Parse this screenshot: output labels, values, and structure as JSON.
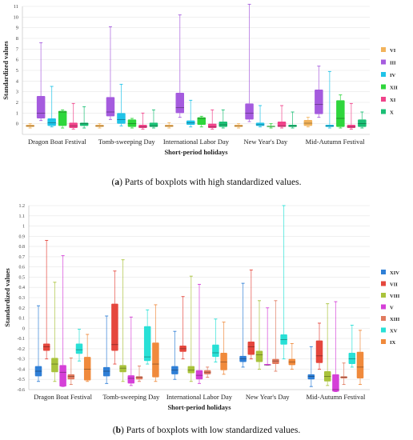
{
  "chart_data": [
    {
      "type": "boxplot",
      "panel_letter": "a",
      "caption": "Parts of boxplots with high standardized values.",
      "xlabel": "Short-period holidays",
      "ylabel": "Standardized values",
      "ylim": [
        -1,
        11
      ],
      "yticks": [
        0,
        1,
        2,
        3,
        4,
        5,
        6,
        7,
        8,
        9,
        10,
        11
      ],
      "grid": "horizontal",
      "legend_position": "right",
      "categories": [
        "Dragon Boat Festival",
        "Tomb-sweeping Day",
        "International Labor Day",
        "New Year's Day",
        "Mid-Autumn Festival"
      ],
      "series": [
        {
          "name": "VI",
          "color": "#F2B35B",
          "boxes": [
            {
              "min": -0.4,
              "q1": -0.3,
              "median": -0.2,
              "q3": -0.1,
              "max": 0.0
            },
            {
              "min": -0.4,
              "q1": -0.3,
              "median": -0.2,
              "q3": -0.1,
              "max": 0.0
            },
            {
              "min": -0.4,
              "q1": -0.3,
              "median": -0.2,
              "q3": -0.1,
              "max": 0.1
            },
            {
              "min": -0.4,
              "q1": -0.3,
              "median": -0.2,
              "q3": -0.1,
              "max": 0.0
            },
            {
              "min": -0.3,
              "q1": -0.2,
              "median": 0.05,
              "q3": 0.35,
              "max": 0.6
            }
          ]
        },
        {
          "name": "III",
          "color": "#A55BDE",
          "boxes": [
            {
              "min": 0.3,
              "q1": 0.5,
              "median": 1.0,
              "q3": 2.6,
              "max": 7.6
            },
            {
              "min": 0.4,
              "q1": 0.7,
              "median": 1.1,
              "q3": 2.5,
              "max": 9.1
            },
            {
              "min": 0.6,
              "q1": 1.0,
              "median": 1.5,
              "q3": 2.9,
              "max": 10.2
            },
            {
              "min": 0.2,
              "q1": 0.4,
              "median": 1.0,
              "q3": 1.9,
              "max": 11.2
            },
            {
              "min": 0.6,
              "q1": 0.9,
              "median": 1.8,
              "q3": 3.2,
              "max": 5.4
            }
          ]
        },
        {
          "name": "IV",
          "color": "#1FC3E8",
          "boxes": [
            {
              "min": -0.3,
              "q1": -0.2,
              "median": 0.1,
              "q3": 0.5,
              "max": 3.5
            },
            {
              "min": -0.2,
              "q1": 0.0,
              "median": 0.4,
              "q3": 1.0,
              "max": 3.7
            },
            {
              "min": -0.3,
              "q1": -0.1,
              "median": 0.1,
              "q3": 0.3,
              "max": 2.2
            },
            {
              "min": -0.3,
              "q1": -0.2,
              "median": -0.1,
              "q3": 0.1,
              "max": 1.7
            },
            {
              "min": -0.4,
              "q1": -0.3,
              "median": -0.2,
              "q3": -0.1,
              "max": 4.9
            }
          ]
        },
        {
          "name": "XII",
          "color": "#2FD63C",
          "boxes": [
            {
              "min": -0.4,
              "q1": -0.2,
              "median": 1.1,
              "q3": 1.2,
              "max": 1.3
            },
            {
              "min": -0.4,
              "q1": -0.3,
              "median": 0.0,
              "q3": 0.4,
              "max": 0.5
            },
            {
              "min": -0.3,
              "q1": -0.1,
              "median": 0.5,
              "q3": 0.6,
              "max": 0.7
            },
            {
              "min": -0.4,
              "q1": -0.3,
              "median": -0.25,
              "q3": -0.2,
              "max": 0.0
            },
            {
              "min": -0.4,
              "q1": -0.3,
              "median": 0.5,
              "q3": 2.2,
              "max": 2.7
            }
          ]
        },
        {
          "name": "XI",
          "color": "#F0438A",
          "boxes": [
            {
              "min": -0.5,
              "q1": -0.4,
              "median": -0.2,
              "q3": 0.1,
              "max": 1.9
            },
            {
              "min": -0.5,
              "q1": -0.4,
              "median": -0.3,
              "q3": -0.1,
              "max": 1.0
            },
            {
              "min": -0.5,
              "q1": -0.4,
              "median": -0.3,
              "q3": 0.0,
              "max": 1.3
            },
            {
              "min": -0.4,
              "q1": -0.3,
              "median": -0.2,
              "q3": 0.2,
              "max": 1.7
            },
            {
              "min": -0.5,
              "q1": -0.4,
              "median": -0.3,
              "q3": -0.1,
              "max": 1.9
            }
          ]
        },
        {
          "name": "X",
          "color": "#1BBF75",
          "boxes": [
            {
              "min": -0.4,
              "q1": -0.2,
              "median": 0.0,
              "q3": 0.1,
              "max": 1.6
            },
            {
              "min": -0.4,
              "q1": -0.3,
              "median": -0.2,
              "q3": 0.1,
              "max": 1.3
            },
            {
              "min": -0.4,
              "q1": -0.3,
              "median": -0.1,
              "q3": 0.2,
              "max": 1.3
            },
            {
              "min": -0.4,
              "q1": -0.3,
              "median": -0.2,
              "q3": -0.1,
              "max": 1.1
            },
            {
              "min": -0.4,
              "q1": -0.3,
              "median": 0.0,
              "q3": 0.4,
              "max": 1.1
            }
          ]
        }
      ]
    },
    {
      "type": "boxplot",
      "panel_letter": "b",
      "caption": "Parts of boxplots with low standardized values.",
      "xlabel": "Short-period holidays",
      "ylabel": "Standardized values",
      "ylim": [
        -0.6,
        1.2
      ],
      "yticks": [
        -0.6,
        -0.5,
        -0.4,
        -0.3,
        -0.2,
        -0.1,
        0,
        0.1,
        0.2,
        0.3,
        0.4,
        0.5,
        0.6,
        0.7,
        0.8,
        0.9,
        1.0,
        1.1,
        1.2
      ],
      "yticklabels": [
        "-0.6",
        "-0.5",
        "-0.4",
        "-0.3",
        "-0.2",
        "-0.1",
        "0",
        "0.1",
        "0.2",
        "0.3",
        "0.4",
        "0.5",
        "0.6",
        "0.7",
        "0.8",
        "0.9",
        "1",
        "1.1",
        "1.2"
      ],
      "grid": "horizontal",
      "legend_position": "right",
      "categories": [
        "Dragon Boat Festival",
        "Tomb-sweeping Day",
        "International Labor Day",
        "New Year's Day",
        "Mid-Autumn Festival"
      ],
      "series": [
        {
          "name": "XIV",
          "color": "#2F7FD6",
          "boxes": [
            {
              "min": -0.52,
              "q1": -0.47,
              "median": -0.42,
              "q3": -0.37,
              "max": 0.22
            },
            {
              "min": -0.54,
              "q1": -0.47,
              "median": -0.42,
              "q3": -0.38,
              "max": 0.12
            },
            {
              "min": -0.5,
              "q1": -0.45,
              "median": -0.41,
              "q3": -0.37,
              "max": -0.03
            },
            {
              "min": -0.38,
              "q1": -0.33,
              "median": -0.3,
              "q3": -0.27,
              "max": 0.44
            },
            {
              "min": -0.57,
              "q1": -0.5,
              "median": -0.47,
              "q3": -0.45,
              "max": -0.18
            }
          ]
        },
        {
          "name": "VII",
          "color": "#E5473D",
          "boxes": [
            {
              "min": -0.3,
              "q1": -0.22,
              "median": -0.18,
              "q3": -0.15,
              "max": 0.86
            },
            {
              "min": -0.35,
              "q1": -0.22,
              "median": -0.16,
              "q3": 0.24,
              "max": 0.56
            },
            {
              "min": -0.3,
              "q1": -0.23,
              "median": -0.2,
              "q3": -0.17,
              "max": 0.31
            },
            {
              "min": -0.3,
              "q1": -0.26,
              "median": -0.18,
              "q3": -0.13,
              "max": 0.57
            },
            {
              "min": -0.4,
              "q1": -0.34,
              "median": -0.27,
              "q3": -0.12,
              "max": 0.05
            }
          ]
        },
        {
          "name": "VIII",
          "color": "#A9C33B",
          "boxes": [
            {
              "min": -0.52,
              "q1": -0.43,
              "median": -0.35,
              "q3": -0.29,
              "max": 0.45
            },
            {
              "min": -0.52,
              "q1": -0.43,
              "median": -0.39,
              "q3": -0.36,
              "max": 0.67
            },
            {
              "min": -0.52,
              "q1": -0.44,
              "median": -0.41,
              "q3": -0.37,
              "max": 0.51
            },
            {
              "min": -0.4,
              "q1": -0.33,
              "median": -0.26,
              "q3": -0.22,
              "max": 0.27
            },
            {
              "min": -0.56,
              "q1": -0.52,
              "median": -0.47,
              "q3": -0.42,
              "max": 0.24
            }
          ]
        },
        {
          "name": "V",
          "color": "#D540D8",
          "boxes": [
            {
              "min": -0.57,
              "q1": -0.57,
              "median": -0.43,
              "q3": -0.36,
              "max": 0.71
            },
            {
              "min": -0.56,
              "q1": -0.54,
              "median": -0.49,
              "q3": -0.46,
              "max": 0.11
            },
            {
              "min": -0.54,
              "q1": -0.5,
              "median": -0.46,
              "q3": -0.41,
              "max": 0.43
            },
            {
              "min": -0.36,
              "q1": -0.36,
              "median": -0.36,
              "q3": -0.35,
              "max": 0.2
            },
            {
              "min": -0.62,
              "q1": -0.62,
              "median": -0.6,
              "q3": -0.45,
              "max": 0.26
            }
          ]
        },
        {
          "name": "XIII",
          "color": "#E07A5F",
          "boxes": [
            {
              "min": -0.55,
              "q1": -0.5,
              "median": -0.47,
              "q3": -0.45,
              "max": -0.29
            },
            {
              "min": -0.52,
              "q1": -0.5,
              "median": -0.48,
              "q3": -0.47,
              "max": -0.37
            },
            {
              "min": -0.48,
              "q1": -0.45,
              "median": -0.43,
              "q3": -0.41,
              "max": -0.38
            },
            {
              "min": -0.42,
              "q1": -0.35,
              "median": -0.32,
              "q3": -0.3,
              "max": 0.27
            },
            {
              "min": -0.55,
              "q1": -0.49,
              "median": -0.48,
              "q3": -0.47,
              "max": -0.34
            }
          ]
        },
        {
          "name": "XV",
          "color": "#28E0D6",
          "boxes": [
            {
              "min": -0.32,
              "q1": -0.25,
              "median": -0.21,
              "q3": -0.15,
              "max": -0.01
            },
            {
              "min": -0.35,
              "q1": -0.32,
              "median": -0.28,
              "q3": 0.02,
              "max": 0.18
            },
            {
              "min": -0.33,
              "q1": -0.28,
              "median": -0.24,
              "q3": -0.16,
              "max": 0.09
            },
            {
              "min": -0.3,
              "q1": -0.16,
              "median": -0.11,
              "q3": -0.06,
              "max": 1.2
            },
            {
              "min": -0.38,
              "q1": -0.35,
              "median": -0.3,
              "q3": -0.24,
              "max": 0.03
            }
          ]
        },
        {
          "name": "IX",
          "color": "#F08A3C",
          "boxes": [
            {
              "min": -0.52,
              "q1": -0.51,
              "median": -0.4,
              "q3": -0.28,
              "max": -0.06
            },
            {
              "min": -0.52,
              "q1": -0.48,
              "median": -0.35,
              "q3": -0.14,
              "max": 0.23
            },
            {
              "min": -0.45,
              "q1": -0.41,
              "median": -0.33,
              "q3": -0.24,
              "max": 0.06
            },
            {
              "min": -0.4,
              "q1": -0.36,
              "median": -0.33,
              "q3": -0.3,
              "max": -0.15
            },
            {
              "min": -0.55,
              "q1": -0.49,
              "median": -0.38,
              "q3": -0.23,
              "max": -0.02
            }
          ]
        }
      ]
    }
  ]
}
